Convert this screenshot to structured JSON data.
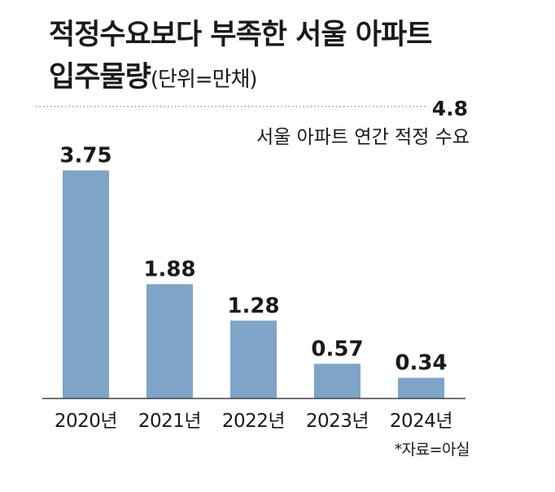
{
  "chart_data": {
    "type": "bar",
    "title": "적정수요보다 부족한 서울 아파트",
    "subtitle": "입주물량",
    "unit": "(단위=만채)",
    "categories": [
      "2020년",
      "2021년",
      "2022년",
      "2023년",
      "2024년"
    ],
    "values": [
      3.75,
      1.88,
      1.28,
      0.57,
      0.34
    ],
    "value_labels": [
      "3.75",
      "1.88",
      "1.28",
      "0.57",
      "0.34"
    ],
    "reference_line": {
      "value": 4.8,
      "value_label": "4.8",
      "label": "서울 아파트 연간 적정 수요",
      "style": "dotted"
    },
    "ylim": [
      0,
      4.8
    ],
    "xlabel": "",
    "ylabel": "",
    "grid": false,
    "bar_color": "#7ea4c8",
    "source": "*자료=아실"
  }
}
